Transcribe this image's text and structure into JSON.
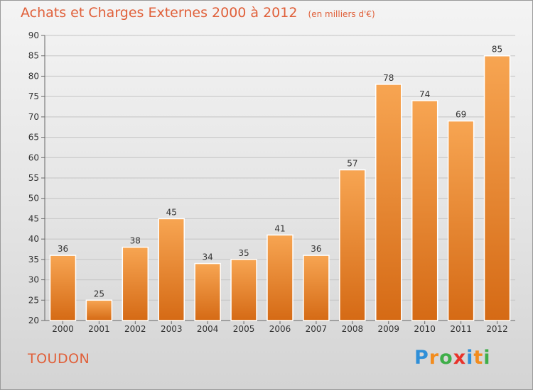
{
  "title": "Achats et Charges Externes 2000 à 2012",
  "subtitle": "(en milliers d'€)",
  "commune": "TOUDON",
  "logo": {
    "letters": [
      "P",
      "r",
      "o",
      "x",
      "i",
      "t",
      "i"
    ],
    "colors": [
      "#2f8fd8",
      "#f28c1e",
      "#3fae49",
      "#e8322a",
      "#2f8fd8",
      "#f28c1e",
      "#3fae49"
    ]
  },
  "colors": {
    "accent": "#e0603a",
    "bar_top": "#f7a552",
    "bar_bottom": "#d56a15"
  },
  "chart_data": {
    "type": "bar",
    "categories": [
      "2000",
      "2001",
      "2002",
      "2003",
      "2004",
      "2005",
      "2006",
      "2007",
      "2008",
      "2009",
      "2010",
      "2011",
      "2012"
    ],
    "values": [
      36,
      25,
      38,
      45,
      34,
      35,
      41,
      36,
      57,
      78,
      74,
      69,
      85
    ],
    "ylim": [
      20,
      90
    ],
    "yticks": [
      20,
      25,
      30,
      35,
      40,
      45,
      50,
      55,
      60,
      65,
      70,
      75,
      80,
      85,
      90
    ],
    "grid": true
  }
}
